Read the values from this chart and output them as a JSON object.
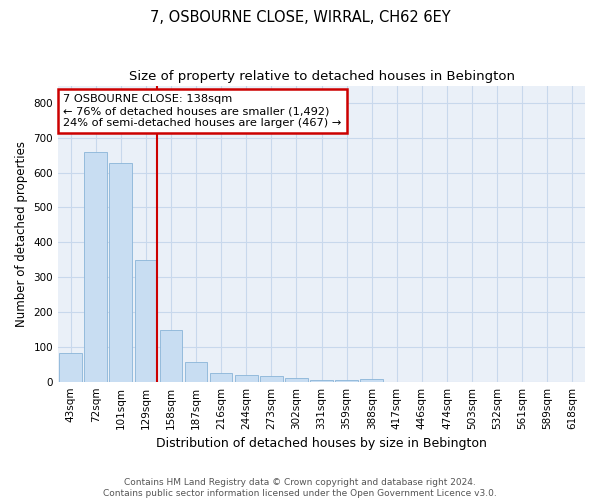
{
  "title": "7, OSBOURNE CLOSE, WIRRAL, CH62 6EY",
  "subtitle": "Size of property relative to detached houses in Bebington",
  "xlabel": "Distribution of detached houses by size in Bebington",
  "ylabel": "Number of detached properties",
  "categories": [
    "43sqm",
    "72sqm",
    "101sqm",
    "129sqm",
    "158sqm",
    "187sqm",
    "216sqm",
    "244sqm",
    "273sqm",
    "302sqm",
    "331sqm",
    "359sqm",
    "388sqm",
    "417sqm",
    "446sqm",
    "474sqm",
    "503sqm",
    "532sqm",
    "561sqm",
    "589sqm",
    "618sqm"
  ],
  "values": [
    82,
    660,
    628,
    348,
    148,
    57,
    25,
    20,
    15,
    10,
    5,
    5,
    8,
    0,
    0,
    0,
    0,
    0,
    0,
    0,
    0
  ],
  "bar_color": "#c8ddf2",
  "bar_edge_color": "#8ab4d8",
  "vline_color": "#cc0000",
  "annotation_text": "7 OSBOURNE CLOSE: 138sqm\n← 76% of detached houses are smaller (1,492)\n24% of semi-detached houses are larger (467) →",
  "annotation_box_color": "#cc0000",
  "annotation_bg": "white",
  "ylim": [
    0,
    850
  ],
  "yticks": [
    0,
    100,
    200,
    300,
    400,
    500,
    600,
    700,
    800
  ],
  "grid_color": "#c8d8ec",
  "bg_color": "#eaf0f8",
  "footer": "Contains HM Land Registry data © Crown copyright and database right 2024.\nContains public sector information licensed under the Open Government Licence v3.0.",
  "title_fontsize": 10.5,
  "subtitle_fontsize": 9.5,
  "xlabel_fontsize": 9,
  "ylabel_fontsize": 8.5,
  "tick_fontsize": 7.5,
  "footer_fontsize": 6.5,
  "ann_fontsize": 8.2
}
